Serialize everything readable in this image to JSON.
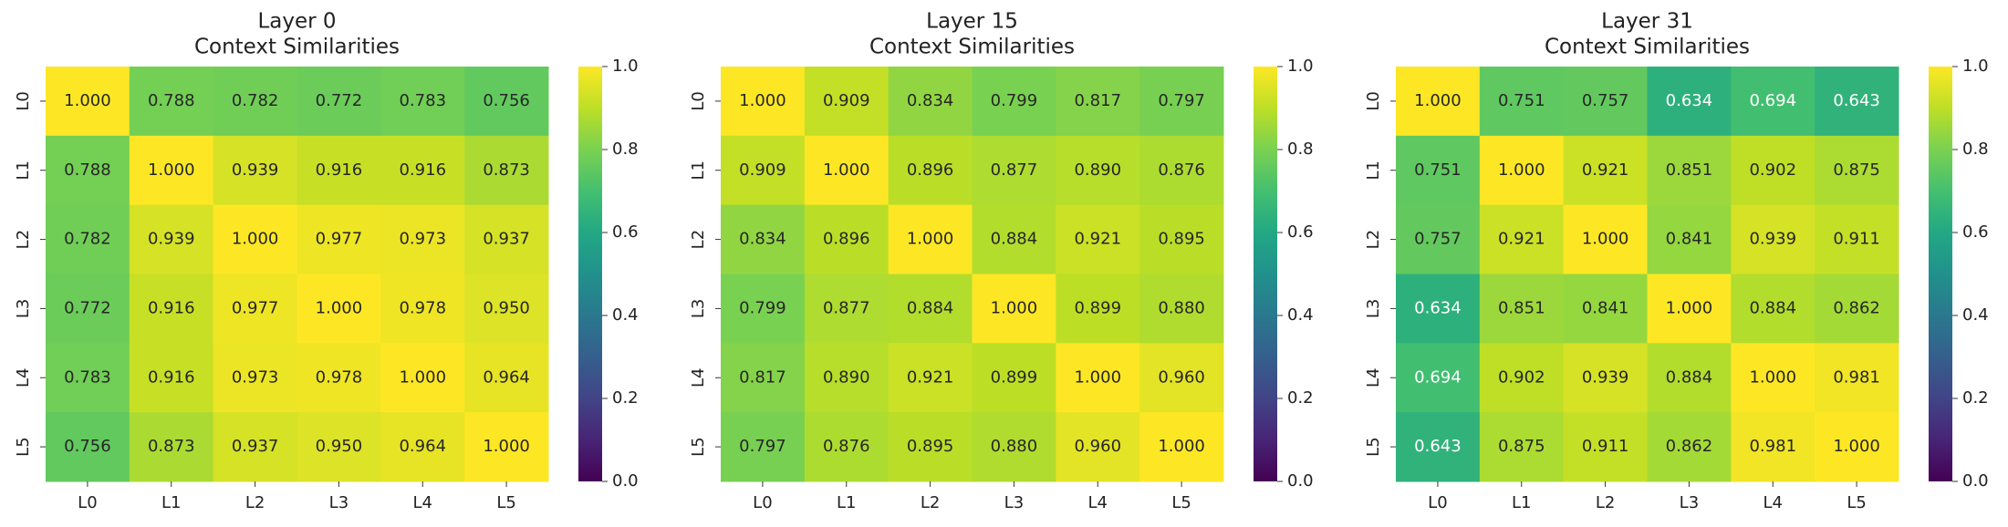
{
  "chart_data": [
    {
      "type": "heatmap",
      "title": "Layer 0",
      "subtitle": "Context Similarities",
      "colormap": "viridis",
      "x_categories": [
        "L0",
        "L1",
        "L2",
        "L3",
        "L4",
        "L5"
      ],
      "y_categories": [
        "L0",
        "L1",
        "L2",
        "L3",
        "L4",
        "L5"
      ],
      "values": [
        [
          1.0,
          0.788,
          0.782,
          0.772,
          0.783,
          0.756
        ],
        [
          0.788,
          1.0,
          0.939,
          0.916,
          0.916,
          0.873
        ],
        [
          0.782,
          0.939,
          1.0,
          0.977,
          0.973,
          0.937
        ],
        [
          0.772,
          0.916,
          0.977,
          1.0,
          0.978,
          0.95
        ],
        [
          0.783,
          0.916,
          0.973,
          0.978,
          1.0,
          0.964
        ],
        [
          0.756,
          0.873,
          0.937,
          0.95,
          0.964,
          1.0
        ]
      ],
      "value_labels": [
        [
          "1.000",
          "0.788",
          "0.782",
          "0.772",
          "0.783",
          "0.756"
        ],
        [
          "0.788",
          "1.000",
          "0.939",
          "0.916",
          "0.916",
          "0.873"
        ],
        [
          "0.782",
          "0.939",
          "1.000",
          "0.977",
          "0.973",
          "0.937"
        ],
        [
          "0.772",
          "0.916",
          "0.977",
          "1.000",
          "0.978",
          "0.950"
        ],
        [
          "0.783",
          "0.916",
          "0.973",
          "0.978",
          "1.000",
          "0.964"
        ],
        [
          "0.756",
          "0.873",
          "0.937",
          "0.950",
          "0.964",
          "1.000"
        ]
      ],
      "clim": [
        0,
        1
      ],
      "cticks": [
        {
          "value": 0,
          "label": "0.0"
        },
        {
          "value": 0.2,
          "label": "0.2"
        },
        {
          "value": 0.4,
          "label": "0.4"
        },
        {
          "value": 0.6,
          "label": "0.6"
        },
        {
          "value": 0.8,
          "label": "0.8"
        },
        {
          "value": 1,
          "label": "1.0"
        }
      ]
    },
    {
      "type": "heatmap",
      "title": "Layer 15",
      "subtitle": "Context Similarities",
      "colormap": "viridis",
      "x_categories": [
        "L0",
        "L1",
        "L2",
        "L3",
        "L4",
        "L5"
      ],
      "y_categories": [
        "L0",
        "L1",
        "L2",
        "L3",
        "L4",
        "L5"
      ],
      "values": [
        [
          1.0,
          0.909,
          0.834,
          0.799,
          0.817,
          0.797
        ],
        [
          0.909,
          1.0,
          0.896,
          0.877,
          0.89,
          0.876
        ],
        [
          0.834,
          0.896,
          1.0,
          0.884,
          0.921,
          0.895
        ],
        [
          0.799,
          0.877,
          0.884,
          1.0,
          0.899,
          0.88
        ],
        [
          0.817,
          0.89,
          0.921,
          0.899,
          1.0,
          0.96
        ],
        [
          0.797,
          0.876,
          0.895,
          0.88,
          0.96,
          1.0
        ]
      ],
      "value_labels": [
        [
          "1.000",
          "0.909",
          "0.834",
          "0.799",
          "0.817",
          "0.797"
        ],
        [
          "0.909",
          "1.000",
          "0.896",
          "0.877",
          "0.890",
          "0.876"
        ],
        [
          "0.834",
          "0.896",
          "1.000",
          "0.884",
          "0.921",
          "0.895"
        ],
        [
          "0.799",
          "0.877",
          "0.884",
          "1.000",
          "0.899",
          "0.880"
        ],
        [
          "0.817",
          "0.890",
          "0.921",
          "0.899",
          "1.000",
          "0.960"
        ],
        [
          "0.797",
          "0.876",
          "0.895",
          "0.880",
          "0.960",
          "1.000"
        ]
      ],
      "clim": [
        0,
        1
      ],
      "cticks": [
        {
          "value": 0,
          "label": "0.0"
        },
        {
          "value": 0.2,
          "label": "0.2"
        },
        {
          "value": 0.4,
          "label": "0.4"
        },
        {
          "value": 0.6,
          "label": "0.6"
        },
        {
          "value": 0.8,
          "label": "0.8"
        },
        {
          "value": 1,
          "label": "1.0"
        }
      ]
    },
    {
      "type": "heatmap",
      "title": "Layer 31",
      "subtitle": "Context Similarities",
      "colormap": "viridis",
      "x_categories": [
        "L0",
        "L1",
        "L2",
        "L3",
        "L4",
        "L5"
      ],
      "y_categories": [
        "L0",
        "L1",
        "L2",
        "L3",
        "L4",
        "L5"
      ],
      "values": [
        [
          1.0,
          0.751,
          0.757,
          0.634,
          0.694,
          0.643
        ],
        [
          0.751,
          1.0,
          0.921,
          0.851,
          0.902,
          0.875
        ],
        [
          0.757,
          0.921,
          1.0,
          0.841,
          0.939,
          0.911
        ],
        [
          0.634,
          0.851,
          0.841,
          1.0,
          0.884,
          0.862
        ],
        [
          0.694,
          0.902,
          0.939,
          0.884,
          1.0,
          0.981
        ],
        [
          0.643,
          0.875,
          0.911,
          0.862,
          0.981,
          1.0
        ]
      ],
      "value_labels": [
        [
          "1.000",
          "0.751",
          "0.757",
          "0.634",
          "0.694",
          "0.643"
        ],
        [
          "0.751",
          "1.000",
          "0.921",
          "0.851",
          "0.902",
          "0.875"
        ],
        [
          "0.757",
          "0.921",
          "1.000",
          "0.841",
          "0.939",
          "0.911"
        ],
        [
          "0.634",
          "0.851",
          "0.841",
          "1.000",
          "0.884",
          "0.862"
        ],
        [
          "0.694",
          "0.902",
          "0.939",
          "0.884",
          "1.000",
          "0.981"
        ],
        [
          "0.643",
          "0.875",
          "0.911",
          "0.862",
          "0.981",
          "1.000"
        ]
      ],
      "clim": [
        0,
        1
      ],
      "cticks": [
        {
          "value": 0,
          "label": "0.0"
        },
        {
          "value": 0.2,
          "label": "0.2"
        },
        {
          "value": 0.4,
          "label": "0.4"
        },
        {
          "value": 0.6,
          "label": "0.6"
        },
        {
          "value": 0.8,
          "label": "0.8"
        },
        {
          "value": 1,
          "label": "1.0"
        }
      ]
    }
  ]
}
